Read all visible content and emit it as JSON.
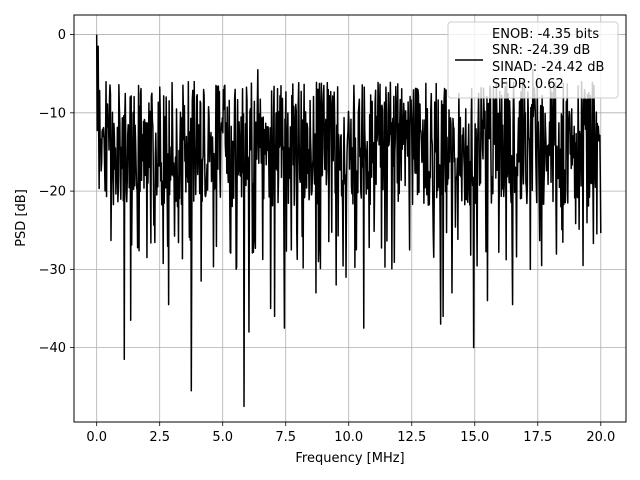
{
  "chart_data": {
    "type": "line",
    "title": "",
    "xlabel": "Frequency [MHz]",
    "ylabel": "PSD [dB]",
    "xlim": [
      -0.9,
      21.0
    ],
    "ylim": [
      -49.5,
      2.5
    ],
    "x_ticks": [
      0.0,
      2.5,
      5.0,
      7.5,
      10.0,
      12.5,
      15.0,
      17.5,
      20.0
    ],
    "x_tick_labels": [
      "0.0",
      "2.5",
      "5.0",
      "7.5",
      "10.0",
      "12.5",
      "15.0",
      "17.5",
      "20.0"
    ],
    "y_ticks": [
      0,
      -10,
      -20,
      -30,
      -40
    ],
    "y_tick_labels": [
      "0",
      "−10",
      "−20",
      "−30",
      "−40"
    ],
    "grid": true,
    "legend_position": "top-right",
    "line_color": "#000000",
    "series": [
      {
        "legend_lines": [
          "ENOB: -4.35 bits",
          "SNR: -24.39 dB",
          "SINAD: -24.42 dB",
          "SFDR: 0.62"
        ],
        "x_range": [
          0.0,
          20.0
        ],
        "num_points": 1024,
        "dominant_band_db": [
          -22.0,
          -6.0
        ],
        "start_peak_db": 0.0,
        "notable_dips": [
          {
            "x": 1.1,
            "y": -41.5
          },
          {
            "x": 1.35,
            "y": -36.5
          },
          {
            "x": 2.85,
            "y": -34.5
          },
          {
            "x": 3.75,
            "y": -45.5
          },
          {
            "x": 5.85,
            "y": -47.5
          },
          {
            "x": 6.05,
            "y": -38.0
          },
          {
            "x": 6.9,
            "y": -35.0
          },
          {
            "x": 7.05,
            "y": -36.0
          },
          {
            "x": 7.45,
            "y": -37.5
          },
          {
            "x": 8.7,
            "y": -33.0
          },
          {
            "x": 9.5,
            "y": -32.0
          },
          {
            "x": 9.9,
            "y": -31.0
          },
          {
            "x": 10.6,
            "y": -37.5
          },
          {
            "x": 13.65,
            "y": -37.0
          },
          {
            "x": 13.75,
            "y": -36.0
          },
          {
            "x": 14.1,
            "y": -33.0
          },
          {
            "x": 14.95,
            "y": -40.0
          },
          {
            "x": 15.5,
            "y": -34.0
          },
          {
            "x": 16.5,
            "y": -34.5
          },
          {
            "x": 4.15,
            "y": -31.5
          },
          {
            "x": 2.0,
            "y": -28.5
          },
          {
            "x": 17.2,
            "y": -30.0
          },
          {
            "x": 19.3,
            "y": -29.5
          }
        ],
        "notable_peaks": [
          {
            "x": 0.05,
            "y": -1.5
          },
          {
            "x": 1.1,
            "y": -4.5
          },
          {
            "x": 6.4,
            "y": -4.5
          },
          {
            "x": 17.3,
            "y": -4.5
          },
          {
            "x": 14.95,
            "y": -5.0
          }
        ]
      }
    ]
  }
}
